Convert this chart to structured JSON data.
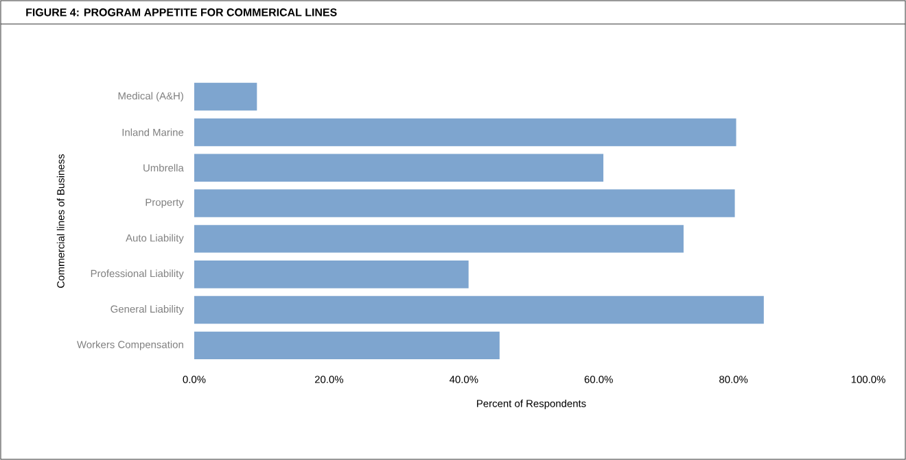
{
  "chart_data": {
    "type": "bar",
    "orientation": "horizontal",
    "title": "FIGURE 4: PROGRAM APPETITE FOR COMMERICAL LINES",
    "xlabel": "Percent of Respondents",
    "ylabel": "Commercial lines of Business",
    "categories": [
      "Medical (A&H)",
      "Inland Marine",
      "Umbrella",
      "Property",
      "Auto Liability",
      "Professional Liability",
      "General Liability",
      "Workers Compensation"
    ],
    "values": [
      9.3,
      80.4,
      60.7,
      80.2,
      72.6,
      40.7,
      84.5,
      45.3
    ],
    "color": "#7ea5cf",
    "xlim": [
      0,
      100
    ],
    "xticks": [
      {
        "value": 0,
        "label": "0.0%"
      },
      {
        "value": 20,
        "label": "20.0%"
      },
      {
        "value": 40,
        "label": "40.0%"
      },
      {
        "value": 60,
        "label": "60.0%"
      },
      {
        "value": 80,
        "label": "80.0%"
      },
      {
        "value": 100,
        "label": "100.0%"
      }
    ],
    "grid": false
  }
}
